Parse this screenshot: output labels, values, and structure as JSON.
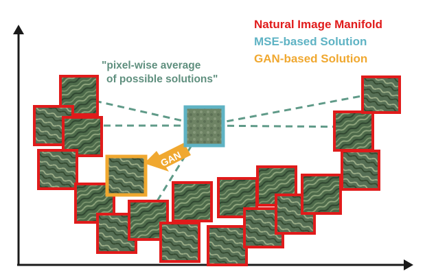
{
  "legend": {
    "natural": "Natural Image Manifold",
    "mse": "MSE-based Solution",
    "gan": "GAN-based Solution"
  },
  "annotation": {
    "line1": "\"pixel-wise average",
    "line2": "of possible solutions\""
  },
  "arrow_label": "GAN",
  "colors": {
    "natural": "#e01b1b",
    "mse": "#5fb3c4",
    "gan": "#f0a830",
    "dashed": "#5f9a88",
    "axis": "#1a1a1a"
  }
}
